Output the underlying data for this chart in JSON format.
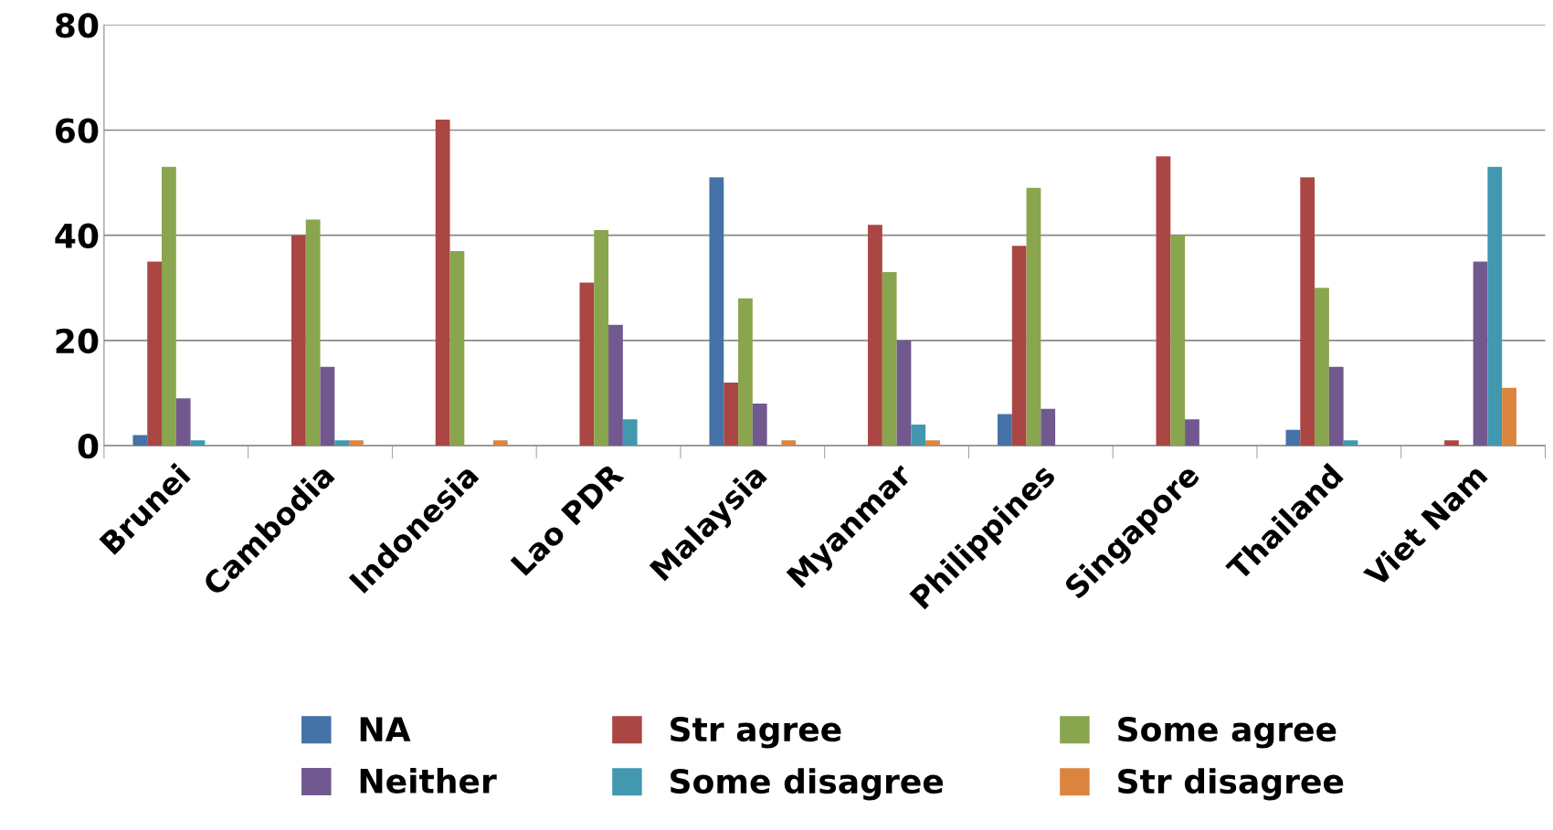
{
  "chart_data": {
    "type": "bar",
    "categories": [
      "Brunei",
      "Cambodia",
      "Indonesia",
      "Lao PDR",
      "Malaysia",
      "Myanmar",
      "Philippines",
      "Singapore",
      "Thailand",
      "Viet Nam"
    ],
    "series": [
      {
        "name": "NA",
        "color": "#4572a7",
        "values": [
          2,
          0,
          0,
          0,
          51,
          0,
          6,
          0,
          3,
          0
        ]
      },
      {
        "name": "Str agree",
        "color": "#aa4643",
        "values": [
          35,
          40,
          62,
          31,
          12,
          42,
          38,
          55,
          51,
          1
        ]
      },
      {
        "name": "Some agree",
        "color": "#89a54e",
        "values": [
          53,
          43,
          37,
          41,
          28,
          33,
          49,
          40,
          30,
          0
        ]
      },
      {
        "name": "Neither",
        "color": "#71588f",
        "values": [
          9,
          15,
          0,
          23,
          8,
          20,
          7,
          5,
          15,
          35
        ]
      },
      {
        "name": "Some disagree",
        "color": "#4198af",
        "values": [
          1,
          1,
          0,
          5,
          0,
          4,
          0,
          0,
          1,
          53
        ]
      },
      {
        "name": "Str disagree",
        "color": "#db843d",
        "values": [
          0,
          1,
          1,
          0,
          1,
          1,
          0,
          0,
          0,
          11
        ]
      }
    ],
    "ylim": [
      0,
      80
    ],
    "yticks": [
      0,
      20,
      40,
      60,
      80
    ],
    "grid": "y",
    "legend": "bottom"
  }
}
